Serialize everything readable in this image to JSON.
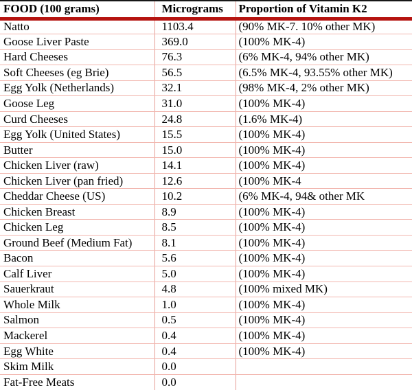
{
  "table": {
    "columns": [
      {
        "key": "food",
        "label": "FOOD (100 grams)"
      },
      {
        "key": "micrograms",
        "label": "Micrograms"
      },
      {
        "key": "proportion",
        "label": "Proportion of Vitamin K2"
      }
    ],
    "rows": [
      {
        "food": "Natto",
        "micrograms": "1103.4",
        "proportion": "(90% MK-7. 10% other MK)"
      },
      {
        "food": "Goose Liver Paste",
        "micrograms": "369.0",
        "proportion": "(100% MK-4)"
      },
      {
        "food": "Hard Cheeses",
        "micrograms": "76.3",
        "proportion": "(6% MK-4, 94% other MK)"
      },
      {
        "food": "Soft Cheeses (eg Brie)",
        "micrograms": "56.5",
        "proportion": "(6.5% MK-4, 93.55% other MK)"
      },
      {
        "food": "Egg Yolk (Netherlands)",
        "micrograms": "32.1",
        "proportion": "(98% MK-4, 2% other MK)"
      },
      {
        "food": "Goose Leg",
        "micrograms": "31.0",
        "proportion": "(100% MK-4)"
      },
      {
        "food": "Curd Cheeses",
        "micrograms": "24.8",
        "proportion": "(1.6% MK-4)"
      },
      {
        "food": "Egg Yolk (United States)",
        "micrograms": "15.5",
        "proportion": "(100% MK-4)"
      },
      {
        "food": "Butter",
        "micrograms": "15.0",
        "proportion": "(100% MK-4)"
      },
      {
        "food": "Chicken Liver (raw)",
        "micrograms": "14.1",
        "proportion": "(100% MK-4)"
      },
      {
        "food": "Chicken Liver (pan fried)",
        "micrograms": "12.6",
        "proportion": "(100% MK-4"
      },
      {
        "food": "Cheddar Cheese (US)",
        "micrograms": "10.2",
        "proportion": "(6% MK-4, 94& other MK"
      },
      {
        "food": "Chicken Breast",
        "micrograms": "8.9",
        "proportion": "(100% MK-4)"
      },
      {
        "food": "Chicken Leg",
        "micrograms": "8.5",
        "proportion": "(100% MK-4)"
      },
      {
        "food": "Ground Beef (Medium Fat)",
        "micrograms": "8.1",
        "proportion": "(100% MK-4)"
      },
      {
        "food": "Bacon",
        "micrograms": "5.6",
        "proportion": "(100% MK-4)"
      },
      {
        "food": "Calf Liver",
        "micrograms": "5.0",
        "proportion": "(100% MK-4)"
      },
      {
        "food": "Sauerkraut",
        "micrograms": "4.8",
        "proportion": "(100% mixed MK)"
      },
      {
        "food": "Whole Milk",
        "micrograms": "1.0",
        "proportion": "(100% MK-4)"
      },
      {
        "food": "Salmon",
        "micrograms": "0.5",
        "proportion": "(100% MK-4)"
      },
      {
        "food": "Mackerel",
        "micrograms": "0.4",
        "proportion": "(100% MK-4)"
      },
      {
        "food": "Egg White",
        "micrograms": "0.4",
        "proportion": "(100% MK-4)"
      },
      {
        "food": "Skim Milk",
        "micrograms": "0.0",
        "proportion": ""
      },
      {
        "food": "Fat-Free Meats",
        "micrograms": "0.0",
        "proportion": ""
      }
    ]
  },
  "colors": {
    "background": "#ffffff",
    "text": "#000000",
    "top_rule": "#161616",
    "header_rule": "#b5130f",
    "row_line": "#f2b6ae",
    "column_line": "#e59a93"
  }
}
